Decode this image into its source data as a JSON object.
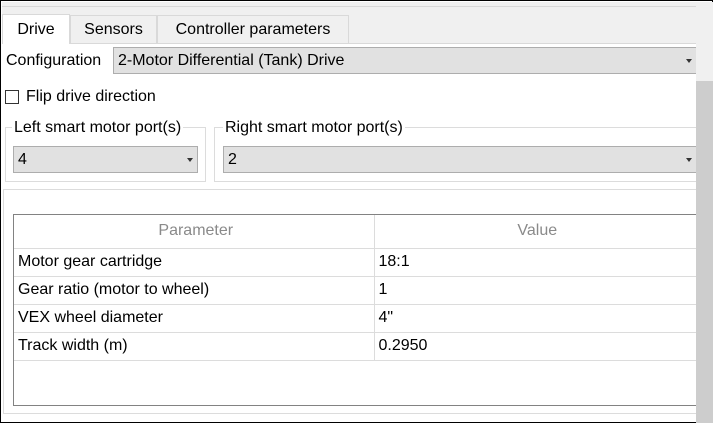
{
  "tabs": [
    {
      "label": "Drive",
      "active": true
    },
    {
      "label": "Sensors"
    },
    {
      "label": "Controller parameters"
    }
  ],
  "configuration": {
    "label": "Configuration",
    "value": "2-Motor Differential (Tank) Drive"
  },
  "flip": {
    "label": "Flip drive direction",
    "checked": false
  },
  "left_ports": {
    "title": "Left smart motor port(s)",
    "value": "4"
  },
  "right_ports": {
    "title": "Right smart motor port(s)",
    "value": "2"
  },
  "table": {
    "headers": [
      "Parameter",
      "Value"
    ],
    "rows": [
      [
        "Motor gear cartridge",
        "18:1"
      ],
      [
        "Gear ratio (motor to wheel)",
        "1"
      ],
      [
        "VEX wheel diameter",
        "4\""
      ],
      [
        "Track width (m)",
        "0.2950"
      ]
    ]
  }
}
